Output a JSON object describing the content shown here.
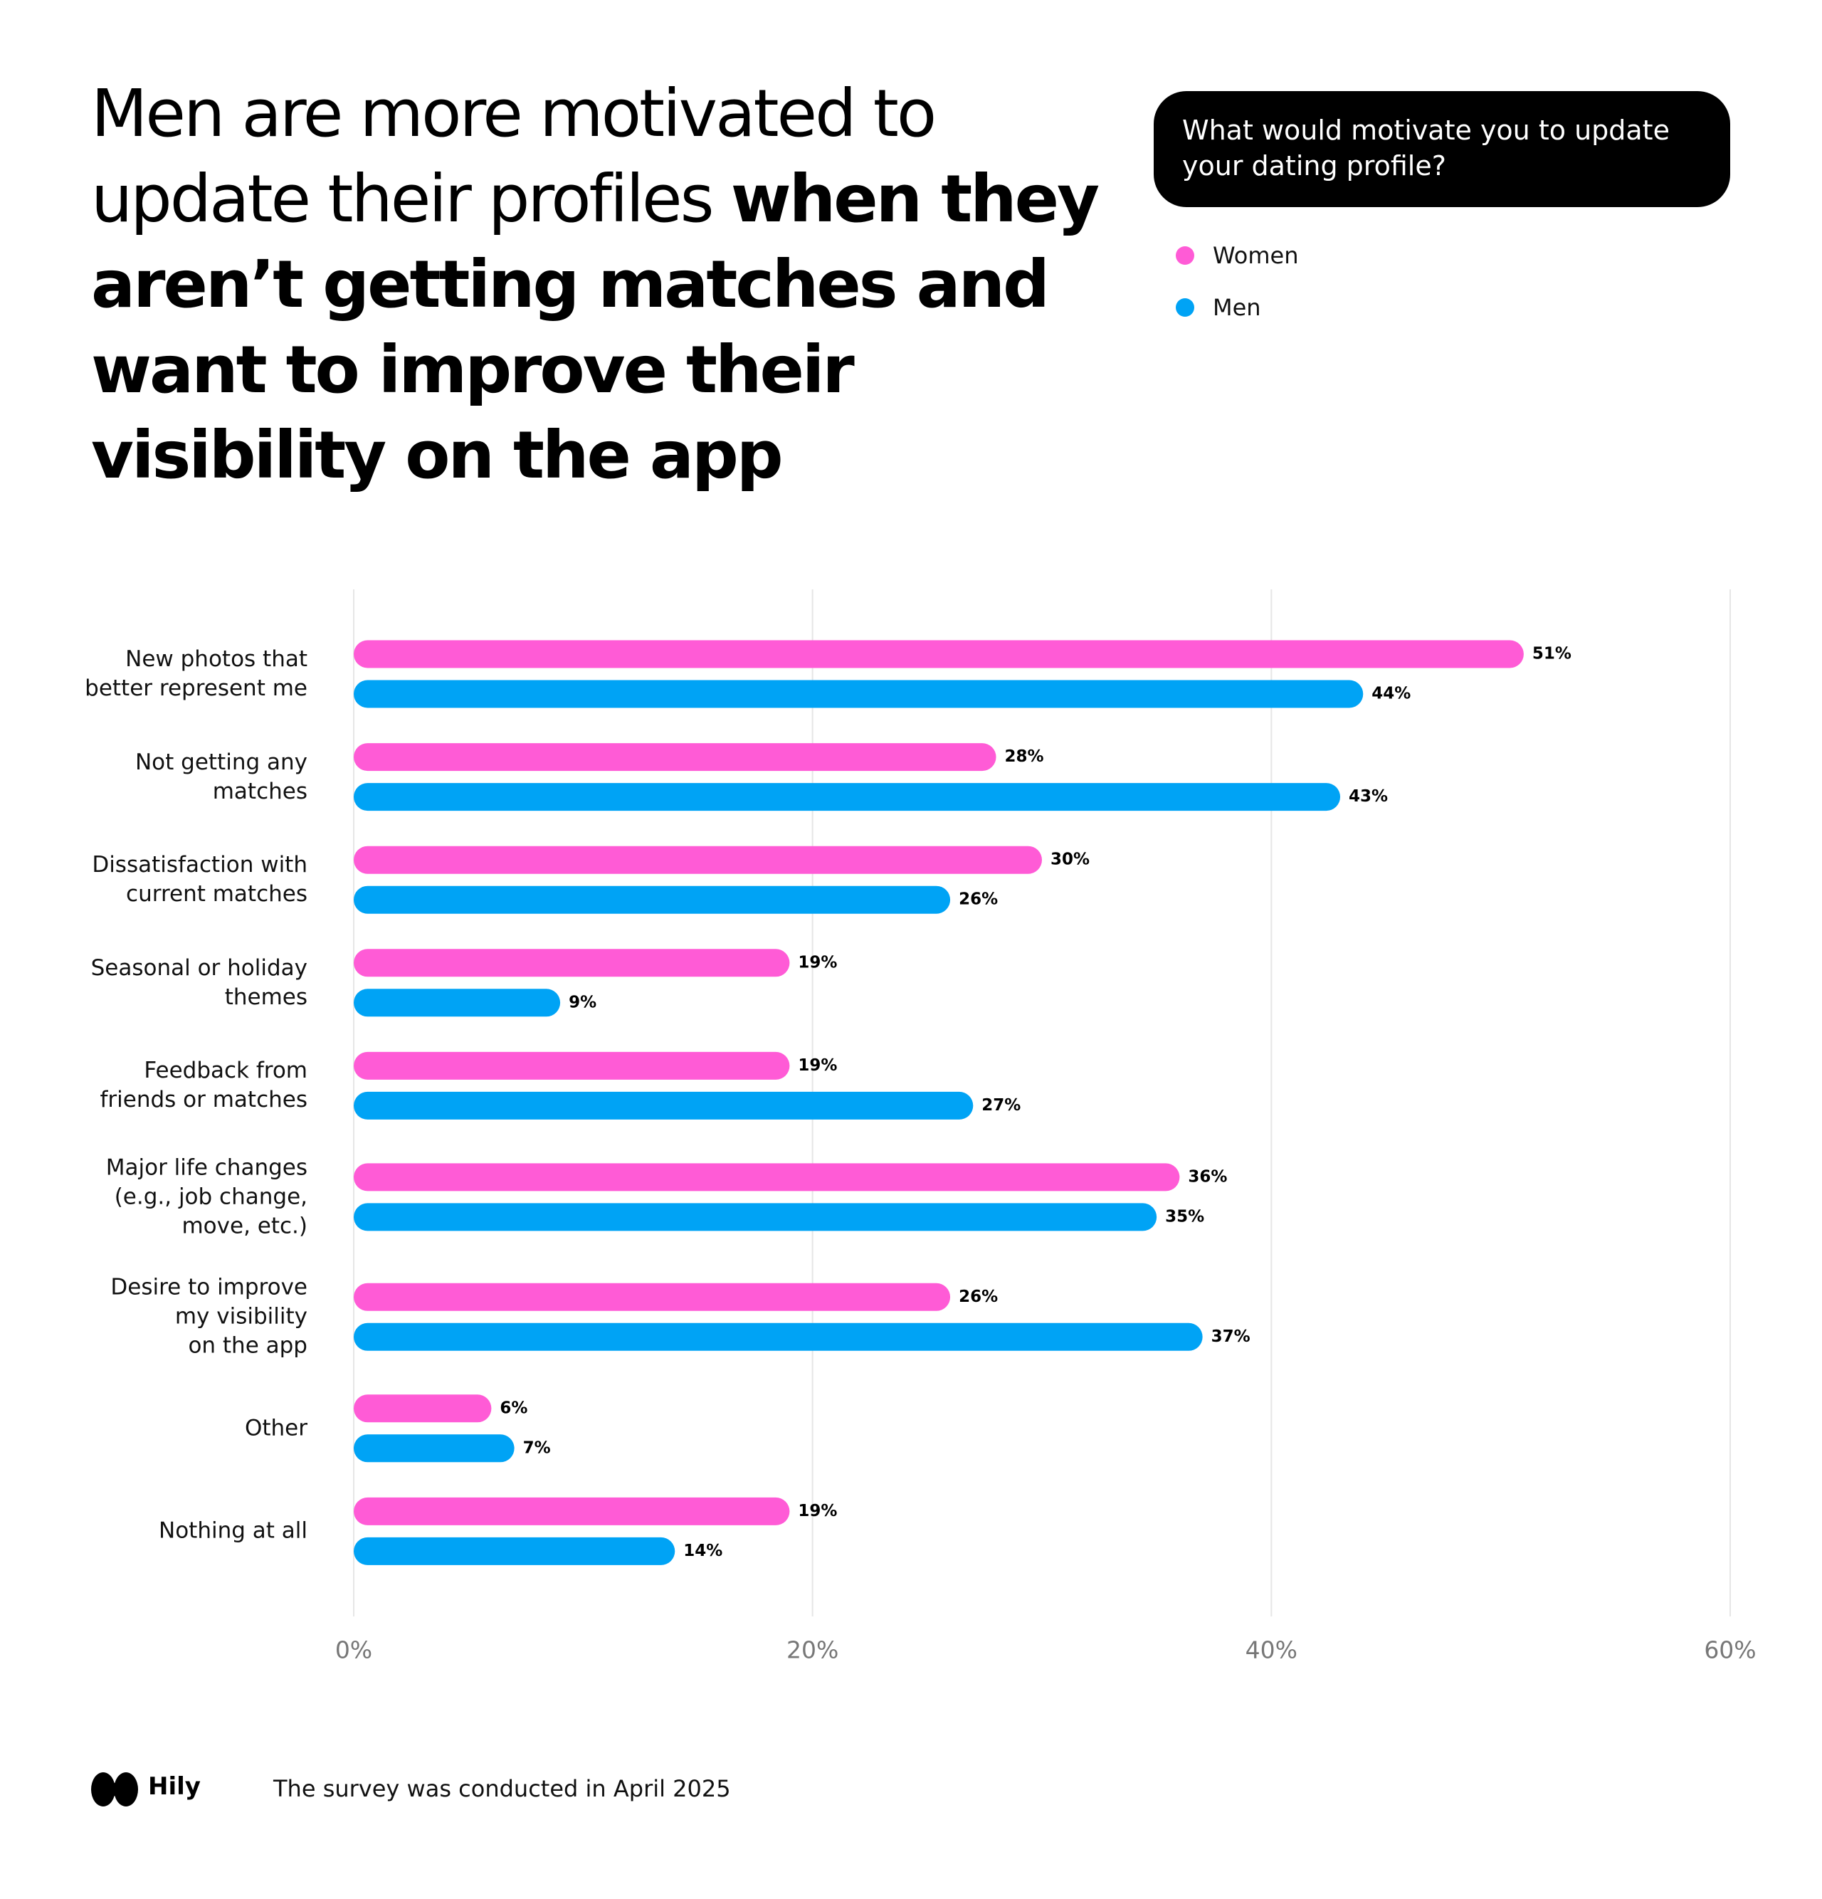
{
  "chart_data": {
    "type": "bar",
    "orientation": "horizontal",
    "title": "Men are more motivated to update their profiles",
    "title_bold": "when they aren’t getting matches and want to improve their visibility on the app",
    "subtitle": "What would motivate you to update your dating profile?",
    "categories": [
      "New photos that\nbetter represent me",
      "Not getting any\nmatches",
      "Dissatisfaction with\ncurrent matches",
      "Seasonal or holiday\nthemes",
      "Feedback from\nfriends or matches",
      "Major life changes\n(e.g., job change,\nmove, etc.)",
      "Desire to improve\nmy visibility\non the app",
      "Other",
      "Nothing at all"
    ],
    "series": [
      {
        "name": "Women",
        "color": "#ff5bd6",
        "values": [
          51,
          28,
          30,
          19,
          19,
          36,
          26,
          6,
          19
        ],
        "value_labels": [
          "51%",
          "28%",
          "30%",
          "19%",
          "19%",
          "36%",
          "26%",
          "6%",
          "19%"
        ]
      },
      {
        "name": "Men",
        "color": "#00a3f5",
        "values": [
          44,
          43,
          26,
          9,
          27,
          35,
          37,
          7,
          14
        ],
        "value_labels": [
          "44%",
          "43%",
          "26%",
          "9%",
          "27%",
          "35%",
          "37%",
          "7%",
          "14%"
        ]
      }
    ],
    "xlim": [
      0,
      60
    ],
    "xticks": [
      {
        "value": 0,
        "label": "0%"
      },
      {
        "value": 20,
        "label": "20%"
      },
      {
        "value": 40,
        "label": "40%"
      },
      {
        "value": 60,
        "label": "60%"
      }
    ],
    "grid": true
  },
  "footer": {
    "brand": "Hily",
    "note": "The survey was conducted in April 2025"
  }
}
